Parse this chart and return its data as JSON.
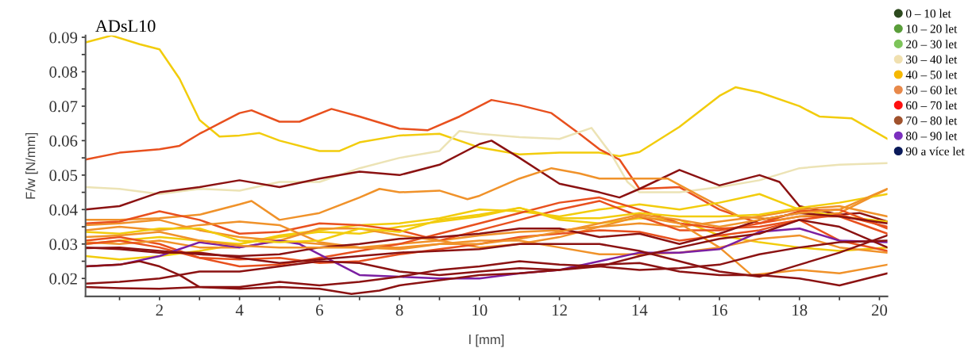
{
  "chart_data": {
    "type": "line",
    "title": "ADsL10",
    "xlabel": "l [mm]",
    "ylabel": "F/w [N/mm]",
    "xlim": [
      0.15,
      20.2
    ],
    "ylim": [
      0.0148,
      0.0905
    ],
    "xticks": [
      {
        "value": 1,
        "label": null
      },
      2,
      {
        "value": 3,
        "label": null
      },
      4,
      {
        "value": 5,
        "label": null
      },
      6,
      {
        "value": 7,
        "label": null
      },
      8,
      {
        "value": 9,
        "label": null
      },
      10,
      {
        "value": 11,
        "label": null
      },
      12,
      {
        "value": 13,
        "label": null
      },
      14,
      {
        "value": 15,
        "label": null
      },
      16,
      {
        "value": 17,
        "label": null
      },
      18,
      {
        "value": 19,
        "label": null
      },
      20
    ],
    "yticks": [
      0.02,
      {
        "value": 0.025,
        "label": null
      },
      0.03,
      {
        "value": 0.035,
        "label": null
      },
      0.04,
      {
        "value": 0.045,
        "label": null
      },
      0.05,
      {
        "value": 0.055,
        "label": null
      },
      0.06,
      {
        "value": 0.065,
        "label": null
      },
      0.07,
      {
        "value": 0.075,
        "label": null
      },
      0.08,
      {
        "value": 0.085,
        "label": null
      },
      0.09
    ],
    "legend": "right",
    "marker": "none",
    "line_style": "solid",
    "series": [
      {
        "name": "0 – 10 let",
        "color": "#2d4a1e"
      },
      {
        "name": "10 – 20 let",
        "color": "#5a9e3a"
      },
      {
        "name": "20 – 30 let",
        "color": "#7dc45a"
      },
      {
        "name": "30 – 40 let",
        "color": "#f0e0b0"
      },
      {
        "name": "40 – 50 let",
        "color": "#f5b800"
      },
      {
        "name": "50 – 60 let",
        "color": "#e8894a"
      },
      {
        "name": "60 – 70 let",
        "color": "#ff1010"
      },
      {
        "name": "70 – 80 let",
        "color": "#a0522d"
      },
      {
        "name": "80 – 90 let",
        "color": "#7b2fbe"
      },
      {
        "name": "90 a více let",
        "color": "#0a1a5a"
      },
      {
        "color": "#f2cc0c",
        "x": [
          0.15,
          0.8,
          1.5,
          2,
          2.5,
          3,
          3.5,
          4,
          4.5,
          5,
          6,
          6.5,
          7,
          8,
          9,
          10,
          11,
          12,
          13,
          13.5,
          14,
          15,
          16,
          16.4,
          17,
          18,
          18.5,
          19.3,
          20.2
        ],
        "values": [
          0.0885,
          0.0905,
          0.088,
          0.0865,
          0.078,
          0.066,
          0.0612,
          0.0615,
          0.0622,
          0.06,
          0.057,
          0.057,
          0.0595,
          0.0615,
          0.062,
          0.058,
          0.056,
          0.0565,
          0.0565,
          0.0555,
          0.0567,
          0.064,
          0.073,
          0.0755,
          0.074,
          0.07,
          0.067,
          0.0665,
          0.0605
        ]
      },
      {
        "color": "#e8501e",
        "x": [
          0.15,
          1,
          2,
          2.5,
          3,
          3.5,
          4,
          4.3,
          5,
          5.5,
          6.3,
          7,
          8,
          8.7,
          9.5,
          10.3,
          11,
          11.8,
          12.5,
          13,
          13.5,
          14,
          15,
          16,
          17,
          18,
          19,
          20.2
        ],
        "values": [
          0.0545,
          0.0565,
          0.0575,
          0.0585,
          0.062,
          0.065,
          0.068,
          0.0688,
          0.0655,
          0.0655,
          0.0692,
          0.067,
          0.0635,
          0.063,
          0.067,
          0.0718,
          0.0703,
          0.068,
          0.062,
          0.0575,
          0.0545,
          0.046,
          0.0465,
          0.04,
          0.036,
          0.038,
          0.038,
          0.033
        ]
      },
      {
        "color": "#ece3b5",
        "x": [
          0.15,
          1,
          2,
          3,
          4,
          5,
          6,
          7,
          8,
          9,
          9.5,
          10,
          11,
          12,
          12.8,
          13.3,
          13.7,
          14,
          15,
          16,
          17,
          18,
          19,
          20.2
        ],
        "values": [
          0.0465,
          0.046,
          0.0445,
          0.046,
          0.0455,
          0.048,
          0.048,
          0.052,
          0.055,
          0.057,
          0.0628,
          0.062,
          0.061,
          0.0605,
          0.0637,
          0.056,
          0.048,
          0.045,
          0.045,
          0.0465,
          0.0485,
          0.052,
          0.053,
          0.0535
        ]
      },
      {
        "color": "#8b1212",
        "x": [
          0.15,
          1,
          2,
          3,
          4,
          5,
          6,
          7,
          8,
          9,
          10,
          10.3,
          11,
          12,
          13,
          13.5,
          14,
          15,
          16,
          17,
          17.5,
          18,
          19,
          19.5,
          20.2
        ],
        "values": [
          0.04,
          0.041,
          0.045,
          0.0465,
          0.0485,
          0.0465,
          0.049,
          0.051,
          0.05,
          0.053,
          0.059,
          0.06,
          0.055,
          0.0475,
          0.045,
          0.0435,
          0.046,
          0.0515,
          0.047,
          0.05,
          0.048,
          0.041,
          0.0385,
          0.039,
          0.0365
        ]
      },
      {
        "color": "#f0922a",
        "x": [
          0.15,
          1,
          2,
          3,
          4,
          4.3,
          5,
          6,
          7,
          7.5,
          8,
          9,
          9.7,
          10,
          11,
          11.8,
          12.5,
          13,
          14,
          14.7,
          15.5,
          16.5,
          17.5,
          18,
          19,
          20.2
        ],
        "values": [
          0.037,
          0.037,
          0.0375,
          0.0385,
          0.0415,
          0.0425,
          0.037,
          0.039,
          0.0435,
          0.046,
          0.045,
          0.0455,
          0.043,
          0.044,
          0.049,
          0.052,
          0.0505,
          0.049,
          0.049,
          0.049,
          0.044,
          0.038,
          0.037,
          0.038,
          0.039,
          0.046
        ]
      },
      {
        "color": "#f2cc0c",
        "x": [
          0.15,
          1,
          2,
          3,
          4,
          5,
          6,
          7,
          8,
          9,
          10,
          11,
          12,
          13,
          14,
          15,
          16,
          17,
          18,
          19,
          20.2
        ],
        "values": [
          0.0265,
          0.0255,
          0.0265,
          0.028,
          0.03,
          0.0325,
          0.034,
          0.0355,
          0.036,
          0.0375,
          0.04,
          0.0395,
          0.038,
          0.04,
          0.0415,
          0.04,
          0.042,
          0.0445,
          0.04,
          0.038,
          0.0365
        ]
      },
      {
        "color": "#f2cc0c",
        "x": [
          0.15,
          1,
          2,
          3,
          4,
          5,
          6,
          7,
          8,
          9,
          10,
          11,
          12,
          13,
          14,
          15,
          16,
          17,
          18,
          19,
          20.2
        ],
        "values": [
          0.03,
          0.031,
          0.032,
          0.031,
          0.03,
          0.032,
          0.0335,
          0.033,
          0.035,
          0.0365,
          0.038,
          0.0405,
          0.037,
          0.036,
          0.0375,
          0.037,
          0.0325,
          0.0305,
          0.029,
          0.028,
          0.029
        ]
      },
      {
        "color": "#f0922a",
        "x": [
          0.15,
          1,
          2,
          3,
          4,
          5,
          6,
          7,
          8,
          9,
          10,
          11,
          12,
          13,
          14,
          15,
          16,
          17,
          18,
          19,
          20.2
        ],
        "values": [
          0.0355,
          0.036,
          0.037,
          0.034,
          0.032,
          0.031,
          0.03,
          0.029,
          0.03,
          0.031,
          0.0325,
          0.0335,
          0.034,
          0.035,
          0.036,
          0.035,
          0.0365,
          0.038,
          0.04,
          0.041,
          0.038
        ]
      },
      {
        "color": "#e8501e",
        "x": [
          0.15,
          1,
          2,
          3,
          4,
          5,
          6,
          7,
          8,
          9,
          10,
          11,
          12,
          13,
          14,
          15,
          16,
          17,
          18,
          19,
          20.2
        ],
        "values": [
          0.031,
          0.032,
          0.03,
          0.026,
          0.0235,
          0.024,
          0.026,
          0.028,
          0.03,
          0.033,
          0.036,
          0.039,
          0.042,
          0.0435,
          0.04,
          0.036,
          0.0345,
          0.035,
          0.037,
          0.0385,
          0.035
        ]
      },
      {
        "color": "#e8501e",
        "x": [
          0.15,
          1,
          2,
          3,
          4,
          5,
          6,
          7,
          8,
          9,
          10,
          11,
          12,
          13,
          14,
          15,
          16,
          17,
          18,
          19,
          20.2
        ],
        "values": [
          0.036,
          0.0365,
          0.0395,
          0.037,
          0.033,
          0.0335,
          0.036,
          0.0355,
          0.034,
          0.031,
          0.034,
          0.037,
          0.04,
          0.0425,
          0.038,
          0.034,
          0.034,
          0.036,
          0.0395,
          0.04,
          0.0345
        ]
      },
      {
        "color": "#f0922a",
        "x": [
          0.15,
          1,
          2,
          3,
          4,
          5,
          6,
          7,
          8,
          9,
          10,
          11,
          12,
          13,
          14,
          15,
          16,
          17,
          18,
          19,
          20.2
        ],
        "values": [
          0.034,
          0.035,
          0.034,
          0.0355,
          0.0365,
          0.0355,
          0.0305,
          0.029,
          0.0285,
          0.03,
          0.031,
          0.031,
          0.029,
          0.027,
          0.027,
          0.0275,
          0.029,
          0.0315,
          0.0325,
          0.029,
          0.0275
        ]
      },
      {
        "color": "#f0922a",
        "x": [
          0.15,
          1,
          2,
          3,
          4,
          5,
          6,
          7,
          8,
          9,
          10,
          11,
          12,
          13,
          14,
          15,
          16,
          16.8,
          18,
          19,
          20.2
        ],
        "values": [
          0.0305,
          0.03,
          0.031,
          0.029,
          0.029,
          0.031,
          0.0345,
          0.0345,
          0.0325,
          0.031,
          0.029,
          0.03,
          0.032,
          0.035,
          0.038,
          0.036,
          0.029,
          0.021,
          0.0225,
          0.0215,
          0.024
        ]
      },
      {
        "color": "#e8501e",
        "x": [
          0.15,
          1,
          2,
          3,
          4,
          5,
          6,
          7,
          8,
          9,
          10,
          11,
          12,
          13,
          14,
          15,
          16,
          17,
          18,
          19,
          20.2
        ],
        "values": [
          0.03,
          0.031,
          0.029,
          0.026,
          0.0255,
          0.026,
          0.0245,
          0.025,
          0.027,
          0.0285,
          0.03,
          0.032,
          0.033,
          0.034,
          0.0335,
          0.031,
          0.0325,
          0.034,
          0.037,
          0.031,
          0.028
        ]
      },
      {
        "color": "#7b1fa2",
        "x": [
          0.15,
          1,
          2,
          2.5,
          3,
          4,
          5,
          5.5,
          6,
          6.5,
          7,
          8,
          9,
          10,
          11,
          12,
          13,
          14,
          15,
          16,
          17,
          18,
          19,
          20.2
        ],
        "values": [
          0.0235,
          0.024,
          0.0265,
          0.0285,
          0.0305,
          0.029,
          0.031,
          0.03,
          0.027,
          0.024,
          0.021,
          0.0205,
          0.02,
          0.02,
          0.0215,
          0.0225,
          0.025,
          0.0275,
          0.0275,
          0.0285,
          0.0335,
          0.0345,
          0.031,
          0.0305
        ]
      },
      {
        "color": "#8b1212",
        "x": [
          0.15,
          1,
          2,
          3,
          4,
          5,
          6,
          7,
          8,
          9,
          10,
          11,
          12,
          13,
          14,
          15,
          16,
          17,
          18,
          19,
          20.2
        ],
        "values": [
          0.029,
          0.0285,
          0.0275,
          0.0275,
          0.026,
          0.0245,
          0.0255,
          0.0265,
          0.0275,
          0.028,
          0.0285,
          0.03,
          0.03,
          0.03,
          0.028,
          0.025,
          0.022,
          0.0205,
          0.024,
          0.0275,
          0.0325
        ]
      },
      {
        "color": "#8b1212",
        "x": [
          0.15,
          1,
          1.5,
          2,
          2.5,
          3,
          4,
          5,
          6,
          6.8,
          7.5,
          8,
          9,
          10,
          11,
          12,
          13,
          14,
          15,
          16,
          17,
          18,
          19,
          20.2
        ],
        "values": [
          0.0235,
          0.024,
          0.025,
          0.0235,
          0.021,
          0.0175,
          0.017,
          0.0175,
          0.017,
          0.0155,
          0.0165,
          0.018,
          0.0195,
          0.021,
          0.0215,
          0.0225,
          0.0235,
          0.0265,
          0.029,
          0.0315,
          0.033,
          0.037,
          0.035,
          0.029
        ]
      },
      {
        "color": "#8b1212",
        "x": [
          0.15,
          1,
          2,
          3,
          4,
          5,
          6,
          7,
          8,
          9,
          10,
          11,
          12,
          13,
          14,
          15,
          16,
          17,
          18,
          19,
          20.2
        ],
        "values": [
          0.0185,
          0.019,
          0.02,
          0.022,
          0.022,
          0.0235,
          0.025,
          0.0245,
          0.022,
          0.021,
          0.022,
          0.023,
          0.0225,
          0.024,
          0.0245,
          0.022,
          0.021,
          0.021,
          0.02,
          0.018,
          0.0215
        ]
      },
      {
        "color": "#8b1212",
        "x": [
          0.15,
          1,
          2,
          3,
          4,
          5,
          6,
          7,
          8,
          9,
          10,
          11,
          12,
          13,
          14,
          15,
          16,
          17,
          18,
          19,
          20.2
        ],
        "values": [
          0.0175,
          0.0172,
          0.017,
          0.0175,
          0.0175,
          0.019,
          0.018,
          0.019,
          0.0205,
          0.0225,
          0.0235,
          0.025,
          0.024,
          0.0235,
          0.0225,
          0.023,
          0.024,
          0.027,
          0.029,
          0.0305,
          0.031
        ]
      },
      {
        "color": "#8b1212",
        "x": [
          0.15,
          1,
          2,
          3,
          4,
          5,
          6,
          7,
          8,
          9,
          10,
          11,
          12,
          13,
          14,
          15,
          16,
          17,
          18,
          19,
          20.2
        ],
        "values": [
          0.0288,
          0.029,
          0.028,
          0.027,
          0.0265,
          0.027,
          0.029,
          0.03,
          0.0315,
          0.032,
          0.033,
          0.0345,
          0.0345,
          0.032,
          0.033,
          0.03,
          0.033,
          0.037,
          0.039,
          0.038,
          0.036
        ]
      },
      {
        "color": "#f2cc0c",
        "x": [
          0.15,
          1,
          2,
          3,
          4,
          5,
          6,
          7,
          8,
          9,
          10,
          11,
          12,
          13,
          14,
          15,
          16,
          17,
          18,
          19,
          20.2
        ],
        "values": [
          0.0335,
          0.033,
          0.0345,
          0.0345,
          0.031,
          0.0305,
          0.031,
          0.0345,
          0.0335,
          0.037,
          0.0385,
          0.0405,
          0.0375,
          0.0375,
          0.039,
          0.038,
          0.038,
          0.0385,
          0.0405,
          0.042,
          0.0445
        ]
      },
      {
        "color": "#f0922a",
        "x": [
          0.15,
          1,
          2,
          3,
          4,
          5,
          6,
          7,
          8,
          9,
          10,
          11,
          12,
          13,
          14,
          15,
          16,
          17,
          18,
          19,
          20.2
        ],
        "values": [
          0.032,
          0.0325,
          0.0335,
          0.031,
          0.0295,
          0.029,
          0.029,
          0.029,
          0.029,
          0.03,
          0.03,
          0.0315,
          0.0335,
          0.036,
          0.0385,
          0.037,
          0.035,
          0.037,
          0.039,
          0.04,
          0.046
        ]
      }
    ]
  }
}
